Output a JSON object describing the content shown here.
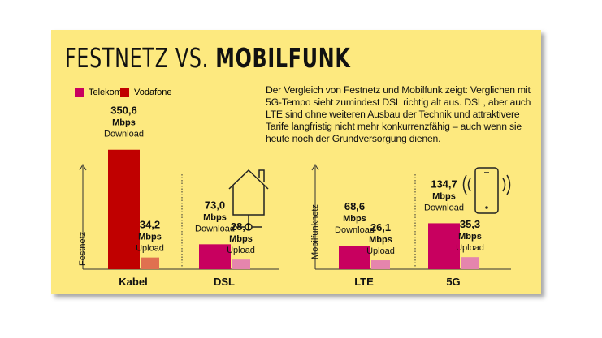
{
  "title": {
    "light": "FESTNETZ VS.",
    "bold": "MOBILFUNK"
  },
  "description": "Der Vergleich von Festnetz und Mobilfunk zeigt: Verglichen mit 5G-Tempo sieht zumindest DSL richtig alt aus. DSL, aber auch LTE sind ohne weiteren Ausbau der Technik und attraktivere Tarife langfristig nicht mehr konkurrenzfähig – auch wenn sie heute noch der Grundversorgung dienen.",
  "chart_data": {
    "type": "bar",
    "title": "FESTNETZ VS. MOBILFUNK",
    "legend": [
      {
        "name": "Telekom",
        "color": "#c8005f"
      },
      {
        "name": "Vodafone",
        "color": "#c00000"
      }
    ],
    "legend_position": "top-left",
    "unit": "Mbps",
    "groups": [
      {
        "axis_label": "Festnetz",
        "categories": [
          "Kabel",
          "DSL"
        ]
      },
      {
        "axis_label": "Mobilfunknetz",
        "categories": [
          "LTE",
          "5G"
        ]
      }
    ],
    "bars": [
      {
        "category": "Kabel",
        "provider": "Vodafone",
        "download": 350.6,
        "upload": 34.2,
        "download_label": "350,6",
        "upload_label": "34,2",
        "colors": [
          "#c00000",
          "#e07050"
        ]
      },
      {
        "category": "DSL",
        "provider": "Telekom",
        "download": 73.0,
        "upload": 28.1,
        "download_label": "73,0",
        "upload_label": "28,1",
        "colors": [
          "#c8005f",
          "#e585ad"
        ]
      },
      {
        "category": "LTE",
        "provider": "Telekom",
        "download": 68.6,
        "upload": 26.1,
        "download_label": "68,6",
        "upload_label": "26,1",
        "colors": [
          "#c8005f",
          "#e585ad"
        ]
      },
      {
        "category": "5G",
        "provider": "Telekom",
        "download": 134.7,
        "upload": 35.3,
        "download_label": "134,7",
        "upload_label": "35,3",
        "colors": [
          "#c8005f",
          "#e585ad"
        ]
      }
    ],
    "unit_label": "Mbps",
    "download_text": "Download",
    "upload_text": "Upload",
    "grid": false
  }
}
